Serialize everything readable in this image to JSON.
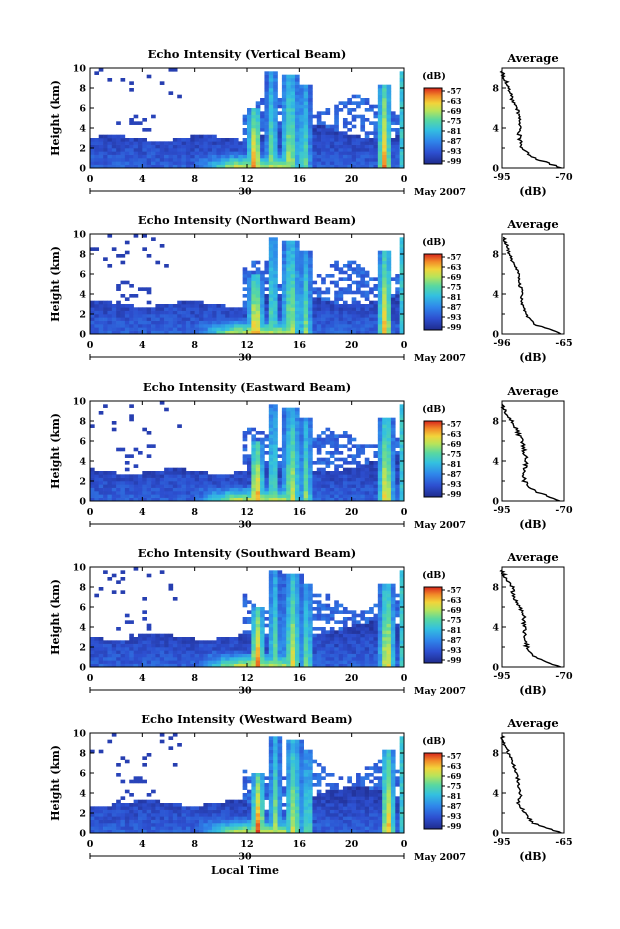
{
  "figure": {
    "date_label": "May 2007",
    "xlabel": "Local Time",
    "colorbar_title": "(dB)",
    "colorbar_ticks": [
      "-57",
      "-63",
      "-69",
      "-75",
      "-81",
      "-87",
      "-93",
      "-99"
    ],
    "colors": {
      "low": "#1f2b8c",
      "mid": "#33c0e0",
      "high": "#d8251c"
    }
  },
  "chart_data": [
    {
      "type": "heatmap",
      "title": "Echo Intensity (Vertical Beam)",
      "xlabel": "",
      "ylabel": "Height (km)",
      "xticks": [
        "0",
        "4",
        "8",
        "12",
        "16",
        "20",
        "0"
      ],
      "day_label": "30",
      "yticks": [
        "0",
        "2",
        "4",
        "6",
        "8",
        "10"
      ],
      "xlim": [
        0,
        24
      ],
      "ylim": [
        0,
        10
      ],
      "avg": {
        "title": "Average",
        "xlabel": "(dB)",
        "xticks": [
          "-95",
          "-70"
        ],
        "xlim": [
          -95,
          -70
        ],
        "profile_height_km": [
          0,
          1,
          2,
          3,
          4,
          5,
          6,
          7,
          8,
          9,
          9.7
        ],
        "profile_db": [
          -71,
          -82,
          -87,
          -88,
          -88,
          -88,
          -89,
          -91,
          -92,
          -94,
          -95
        ]
      }
    },
    {
      "type": "heatmap",
      "title": "Echo Intensity (Northward Beam)",
      "xlabel": "",
      "ylabel": "Height (km)",
      "xticks": [
        "0",
        "4",
        "8",
        "12",
        "16",
        "20",
        "0"
      ],
      "day_label": "30",
      "yticks": [
        "0",
        "2",
        "4",
        "6",
        "8",
        "10"
      ],
      "xlim": [
        0,
        24
      ],
      "ylim": [
        0,
        10
      ],
      "avg": {
        "title": "Average",
        "xlabel": "(dB)",
        "xticks": [
          "-96",
          "-65"
        ],
        "xlim": [
          -96,
          -65
        ],
        "profile_height_km": [
          0,
          1,
          2,
          3,
          4,
          5,
          6,
          7,
          8,
          9,
          9.7
        ],
        "profile_db": [
          -66,
          -80,
          -84,
          -86,
          -86,
          -87,
          -88,
          -90,
          -92,
          -94,
          -95
        ]
      }
    },
    {
      "type": "heatmap",
      "title": "Echo Intensity (Eastward Beam)",
      "xlabel": "",
      "ylabel": "Height (km)",
      "xticks": [
        "0",
        "4",
        "8",
        "12",
        "16",
        "20",
        "0"
      ],
      "day_label": "30",
      "yticks": [
        "0",
        "2",
        "4",
        "6",
        "8",
        "10"
      ],
      "xlim": [
        0,
        24
      ],
      "ylim": [
        0,
        10
      ],
      "avg": {
        "title": "Average",
        "xlabel": "(dB)",
        "xticks": [
          "-95",
          "-70"
        ],
        "xlim": [
          -95,
          -70
        ],
        "profile_height_km": [
          0,
          1,
          2,
          3,
          4,
          5,
          6,
          7,
          8,
          9,
          9.7
        ],
        "profile_db": [
          -71,
          -82,
          -86,
          -86,
          -85,
          -86,
          -87,
          -89,
          -91,
          -94,
          -95
        ]
      }
    },
    {
      "type": "heatmap",
      "title": "Echo Intensity (Southward Beam)",
      "xlabel": "",
      "ylabel": "Height (km)",
      "xticks": [
        "0",
        "4",
        "8",
        "12",
        "16",
        "20",
        "0"
      ],
      "day_label": "30",
      "yticks": [
        "0",
        "2",
        "4",
        "6",
        "8",
        "10"
      ],
      "xlim": [
        0,
        24
      ],
      "ylim": [
        0,
        10
      ],
      "avg": {
        "title": "Average",
        "xlabel": "(dB)",
        "xticks": [
          "-95",
          "-70"
        ],
        "xlim": [
          -95,
          -70
        ],
        "profile_height_km": [
          0,
          1,
          2,
          3,
          4,
          5,
          6,
          7,
          8,
          9,
          9.7
        ],
        "profile_db": [
          -72,
          -82,
          -85,
          -86,
          -86,
          -86,
          -88,
          -90,
          -91,
          -94,
          -95
        ]
      }
    },
    {
      "type": "heatmap",
      "title": "Echo Intensity (Westward Beam)",
      "xlabel": "Local Time",
      "ylabel": "Height (km)",
      "xticks": [
        "0",
        "4",
        "8",
        "12",
        "16",
        "20",
        "0"
      ],
      "day_label": "30",
      "yticks": [
        "0",
        "2",
        "4",
        "6",
        "8",
        "10"
      ],
      "xlim": [
        0,
        24
      ],
      "ylim": [
        0,
        10
      ],
      "avg": {
        "title": "Average",
        "xlabel": "(dB)",
        "xticks": [
          "-95",
          "-65"
        ],
        "xlim": [
          -95,
          -65
        ],
        "profile_height_km": [
          0,
          1,
          2,
          3,
          4,
          5,
          6,
          7,
          8,
          9,
          9.7
        ],
        "profile_db": [
          -66,
          -80,
          -84,
          -87,
          -86,
          -87,
          -88,
          -90,
          -92,
          -94,
          -95
        ]
      }
    }
  ]
}
